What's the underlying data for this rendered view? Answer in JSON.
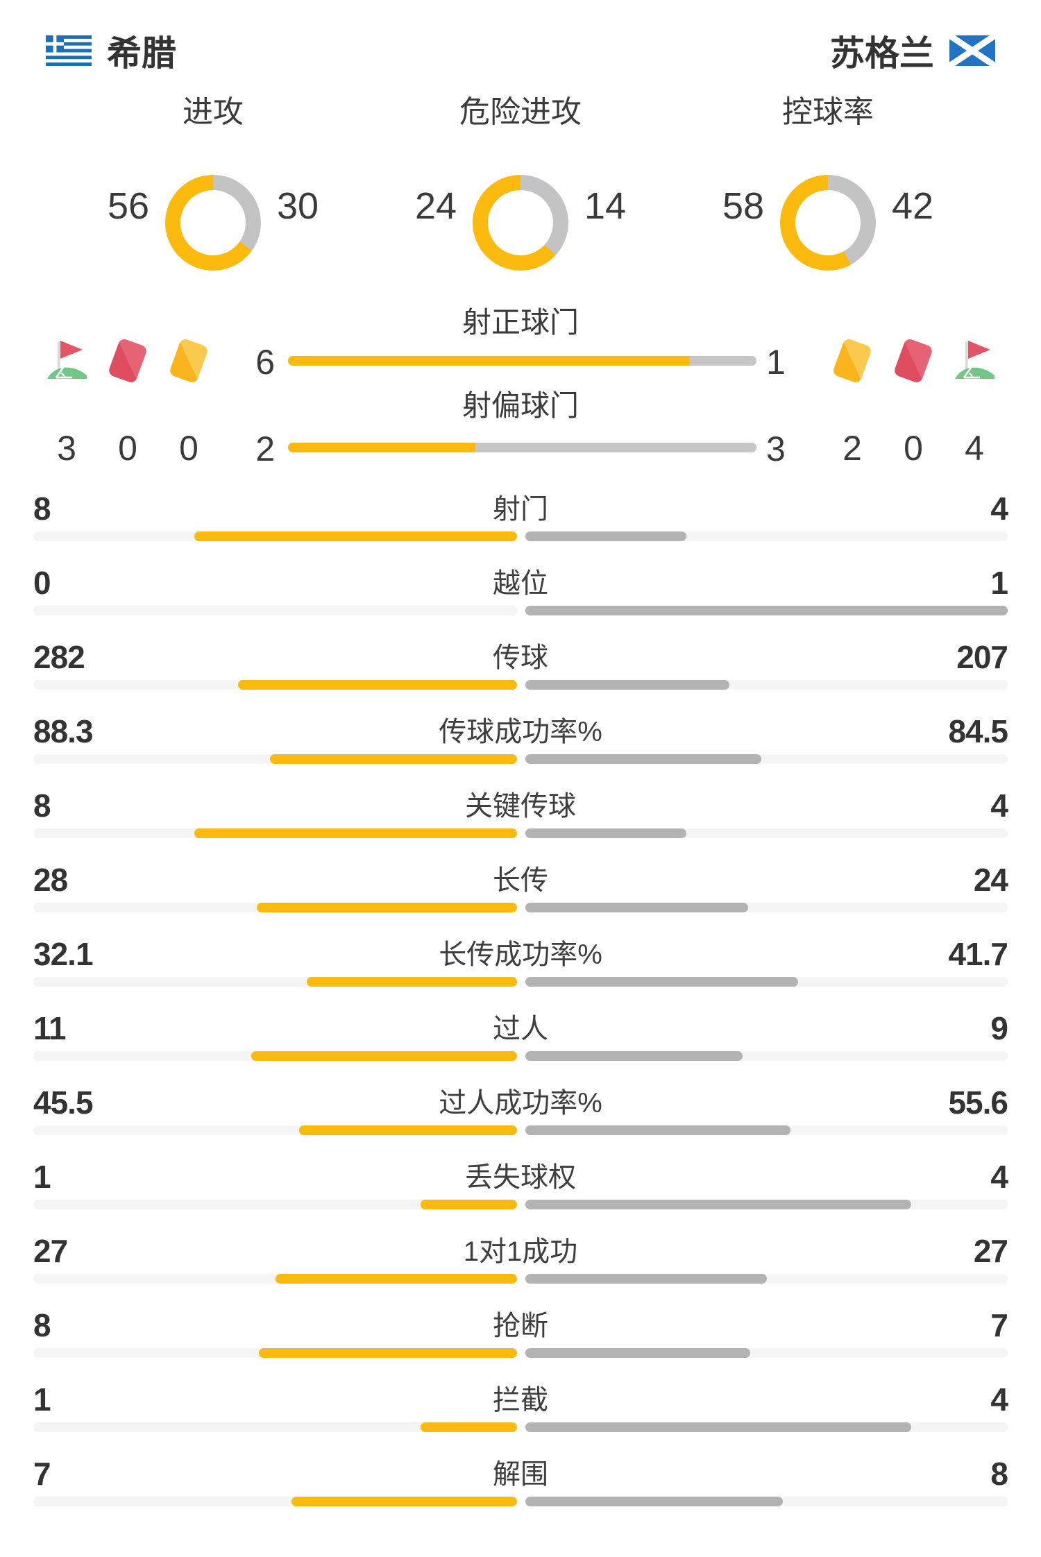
{
  "teams": {
    "home": "希腊",
    "away": "苏格兰"
  },
  "colors": {
    "home_accent": "#FBBA0D",
    "away_fill": "#B3B3B3",
    "donut_away": "#C3C3C3",
    "center_bar_away": "#C6C6C6",
    "track": "#F5F5F5",
    "greece_blue": "#1A70B8",
    "scotland_blue": "#2173C4",
    "card_red": "#DE4C60",
    "card_yellow": "#FAB51E",
    "flag_green": "#72C787"
  },
  "chart_data": {
    "type": "bar",
    "donuts": [
      {
        "label": "进攻",
        "home": 56,
        "away": 30
      },
      {
        "label": "危险进攻",
        "home": 24,
        "away": 14
      },
      {
        "label": "控球率",
        "home": 58,
        "away": 42
      }
    ],
    "shot_rows": [
      {
        "label": "射正球门",
        "home": "6",
        "away": "1"
      },
      {
        "label": "射偏球门",
        "home": "2",
        "away": "3"
      }
    ],
    "card_groups": {
      "home": [
        {
          "icon": "corner-flag-icon",
          "count": "3"
        },
        {
          "icon": "red-card-icon",
          "count": "0"
        },
        {
          "icon": "yellow-card-icon",
          "count": "0"
        }
      ],
      "away": [
        {
          "icon": "yellow-card-icon",
          "count": "2"
        },
        {
          "icon": "red-card-icon",
          "count": "0"
        },
        {
          "icon": "corner-flag-icon",
          "count": "4"
        }
      ]
    },
    "stat_rows": [
      {
        "label": "射门",
        "home": "8",
        "away": "4"
      },
      {
        "label": "越位",
        "home": "0",
        "away": "1"
      },
      {
        "label": "传球",
        "home": "282",
        "away": "207"
      },
      {
        "label": "传球成功率%",
        "home": "88.3",
        "away": "84.5"
      },
      {
        "label": "关键传球",
        "home": "8",
        "away": "4"
      },
      {
        "label": "长传",
        "home": "28",
        "away": "24"
      },
      {
        "label": "长传成功率%",
        "home": "32.1",
        "away": "41.7"
      },
      {
        "label": "过人",
        "home": "11",
        "away": "9"
      },
      {
        "label": "过人成功率%",
        "home": "45.5",
        "away": "55.6"
      },
      {
        "label": "丢失球权",
        "home": "1",
        "away": "4"
      },
      {
        "label": "1对1成功",
        "home": "27",
        "away": "27"
      },
      {
        "label": "抢断",
        "home": "8",
        "away": "7"
      },
      {
        "label": "拦截",
        "home": "1",
        "away": "4"
      },
      {
        "label": "解围",
        "home": "7",
        "away": "8"
      }
    ]
  }
}
